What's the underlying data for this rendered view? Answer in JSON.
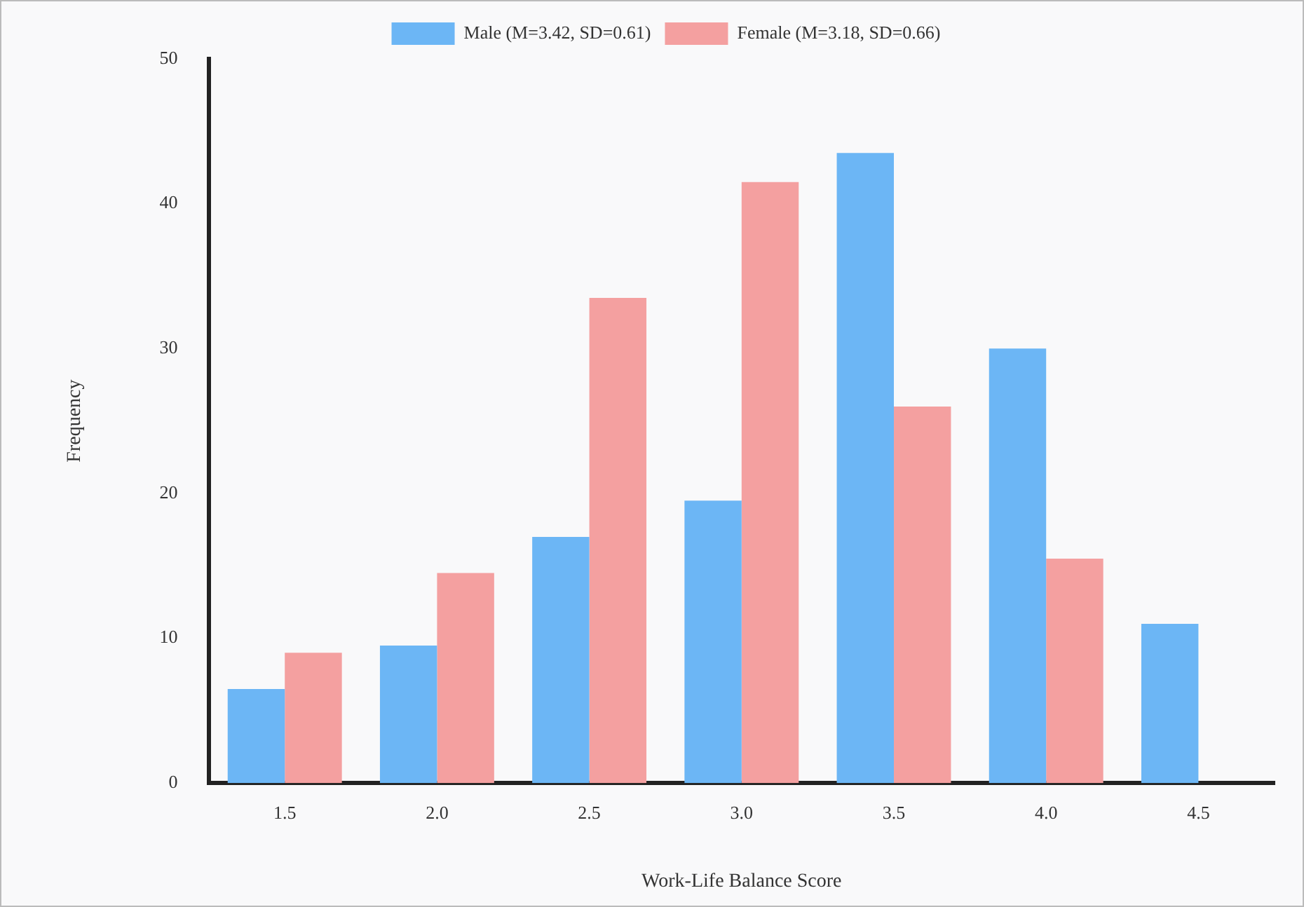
{
  "chart_data": {
    "type": "bar",
    "xlabel": "Work-Life Balance Score",
    "ylabel": "Frequency",
    "categories": [
      "1.5",
      "2.0",
      "2.5",
      "3.0",
      "3.5",
      "4.0",
      "4.5"
    ],
    "series": [
      {
        "name": "Male (M=3.42, SD=0.61)",
        "color": "#6cb6f5",
        "values": [
          6.5,
          9.5,
          17,
          19.5,
          43.5,
          30,
          11
        ]
      },
      {
        "name": "Female (M=3.18, SD=0.66)",
        "color": "#f4a0a0",
        "values": [
          9,
          14.5,
          33.5,
          41.5,
          26,
          15.5,
          null
        ]
      }
    ],
    "ylim": [
      0,
      50
    ],
    "yticks": [
      0,
      10,
      20,
      30,
      40,
      50
    ],
    "grid": false,
    "legend": "top"
  }
}
